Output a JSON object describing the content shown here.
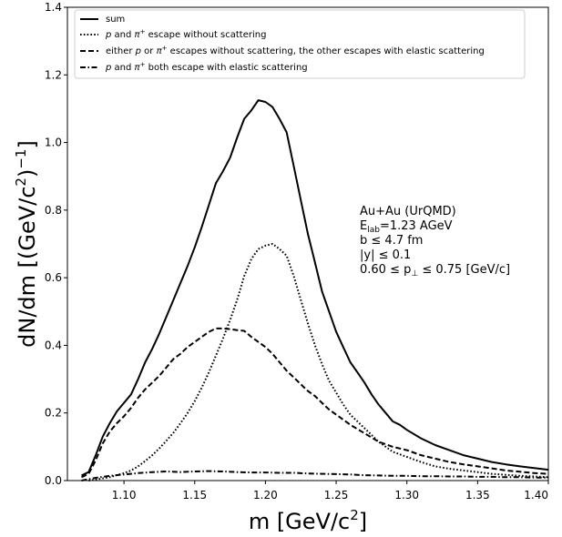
{
  "chart_data": {
    "type": "line",
    "xlabel": "m [GeV/c²]",
    "ylabel": "dN/dm [(GeV/c²)⁻¹]",
    "xlim": [
      1.06,
      1.4
    ],
    "ylim": [
      0.0,
      1.4
    ],
    "xticks": [
      "1.10",
      "1.15",
      "1.20",
      "1.25",
      "1.30",
      "1.35",
      "1.40"
    ],
    "xtick_values": [
      1.1,
      1.15,
      1.2,
      1.25,
      1.3,
      1.35,
      1.4
    ],
    "yticks": [
      "0.0",
      "0.2",
      "0.4",
      "0.6",
      "0.8",
      "1.0",
      "1.2",
      "1.4"
    ],
    "ytick_values": [
      0.0,
      0.2,
      0.4,
      0.6,
      0.8,
      1.0,
      1.2,
      1.4
    ],
    "grid": false,
    "legend_position": "top-left",
    "series": [
      {
        "name": "sum",
        "style": "solid",
        "x": [
          1.07,
          1.075,
          1.08,
          1.085,
          1.09,
          1.095,
          1.1,
          1.105,
          1.11,
          1.115,
          1.12,
          1.125,
          1.13,
          1.135,
          1.14,
          1.145,
          1.15,
          1.155,
          1.16,
          1.165,
          1.17,
          1.175,
          1.18,
          1.185,
          1.19,
          1.195,
          1.2,
          1.205,
          1.21,
          1.215,
          1.22,
          1.225,
          1.23,
          1.235,
          1.24,
          1.245,
          1.25,
          1.255,
          1.26,
          1.265,
          1.27,
          1.275,
          1.28,
          1.285,
          1.29,
          1.295,
          1.3,
          1.31,
          1.32,
          1.33,
          1.34,
          1.35,
          1.36,
          1.37,
          1.38,
          1.39,
          1.4
        ],
        "y": [
          0.015,
          0.025,
          0.075,
          0.13,
          0.17,
          0.205,
          0.23,
          0.255,
          0.3,
          0.35,
          0.39,
          0.435,
          0.485,
          0.535,
          0.585,
          0.635,
          0.69,
          0.75,
          0.815,
          0.88,
          0.915,
          0.955,
          1.015,
          1.07,
          1.095,
          1.125,
          1.12,
          1.105,
          1.07,
          1.03,
          0.93,
          0.83,
          0.73,
          0.645,
          0.56,
          0.5,
          0.44,
          0.395,
          0.35,
          0.32,
          0.29,
          0.255,
          0.225,
          0.2,
          0.175,
          0.165,
          0.15,
          0.125,
          0.105,
          0.09,
          0.075,
          0.065,
          0.055,
          0.048,
          0.042,
          0.037,
          0.032
        ]
      },
      {
        "name": "p and π⁺ escape without scattering",
        "style": "dotted",
        "x": [
          1.075,
          1.08,
          1.09,
          1.1,
          1.105,
          1.11,
          1.115,
          1.12,
          1.125,
          1.13,
          1.135,
          1.14,
          1.145,
          1.15,
          1.155,
          1.16,
          1.165,
          1.17,
          1.175,
          1.18,
          1.185,
          1.19,
          1.195,
          1.2,
          1.205,
          1.21,
          1.215,
          1.22,
          1.225,
          1.23,
          1.235,
          1.24,
          1.245,
          1.25,
          1.255,
          1.26,
          1.265,
          1.27,
          1.275,
          1.28,
          1.29,
          1.3,
          1.31,
          1.32,
          1.33,
          1.34,
          1.35,
          1.36,
          1.37,
          1.38,
          1.39,
          1.4
        ],
        "y": [
          0.0,
          0.003,
          0.01,
          0.022,
          0.03,
          0.042,
          0.058,
          0.075,
          0.095,
          0.118,
          0.142,
          0.17,
          0.2,
          0.235,
          0.275,
          0.32,
          0.37,
          0.42,
          0.475,
          0.535,
          0.605,
          0.655,
          0.685,
          0.695,
          0.7,
          0.685,
          0.665,
          0.605,
          0.535,
          0.465,
          0.4,
          0.345,
          0.295,
          0.26,
          0.225,
          0.195,
          0.175,
          0.155,
          0.135,
          0.115,
          0.085,
          0.07,
          0.055,
          0.042,
          0.035,
          0.03,
          0.025,
          0.02,
          0.017,
          0.014,
          0.012,
          0.01
        ]
      },
      {
        "name": "either p or π⁺ escapes without scattering, the other escapes with elastic scattering",
        "style": "dashed",
        "x": [
          1.07,
          1.075,
          1.08,
          1.085,
          1.09,
          1.095,
          1.1,
          1.105,
          1.11,
          1.115,
          1.12,
          1.125,
          1.13,
          1.135,
          1.14,
          1.145,
          1.15,
          1.155,
          1.16,
          1.165,
          1.17,
          1.175,
          1.18,
          1.185,
          1.19,
          1.195,
          1.2,
          1.205,
          1.21,
          1.215,
          1.22,
          1.225,
          1.23,
          1.235,
          1.24,
          1.245,
          1.25,
          1.26,
          1.27,
          1.28,
          1.29,
          1.3,
          1.31,
          1.32,
          1.33,
          1.34,
          1.35,
          1.36,
          1.37,
          1.38,
          1.39,
          1.4
        ],
        "y": [
          0.01,
          0.02,
          0.06,
          0.11,
          0.145,
          0.17,
          0.19,
          0.215,
          0.245,
          0.27,
          0.29,
          0.31,
          0.335,
          0.36,
          0.375,
          0.395,
          0.41,
          0.425,
          0.44,
          0.45,
          0.45,
          0.448,
          0.445,
          0.443,
          0.425,
          0.41,
          0.395,
          0.375,
          0.35,
          0.325,
          0.305,
          0.285,
          0.265,
          0.25,
          0.23,
          0.21,
          0.195,
          0.165,
          0.14,
          0.115,
          0.1,
          0.09,
          0.075,
          0.065,
          0.055,
          0.048,
          0.042,
          0.036,
          0.03,
          0.026,
          0.022,
          0.02
        ]
      },
      {
        "name": "p and π⁺ both escape with elastic scattering",
        "style": "dashdot",
        "x": [
          1.07,
          1.08,
          1.09,
          1.1,
          1.11,
          1.12,
          1.13,
          1.14,
          1.15,
          1.16,
          1.17,
          1.18,
          1.19,
          1.2,
          1.21,
          1.22,
          1.23,
          1.24,
          1.25,
          1.26,
          1.27,
          1.28,
          1.29,
          1.3,
          1.31,
          1.32,
          1.33,
          1.34,
          1.35,
          1.36,
          1.37,
          1.38,
          1.39,
          1.4
        ],
        "y": [
          0.0,
          0.008,
          0.014,
          0.018,
          0.022,
          0.025,
          0.027,
          0.025,
          0.027,
          0.028,
          0.027,
          0.025,
          0.024,
          0.024,
          0.023,
          0.023,
          0.021,
          0.02,
          0.019,
          0.018,
          0.016,
          0.015,
          0.014,
          0.014,
          0.013,
          0.013,
          0.012,
          0.012,
          0.011,
          0.011,
          0.01,
          0.01,
          0.009,
          0.009
        ]
      }
    ],
    "legend": [
      {
        "style": "solid",
        "label_parts": [
          "sum"
        ]
      },
      {
        "style": "dotted",
        "label_parts": [
          "p",
          " and ",
          "π",
          "+",
          " escape without scattering"
        ]
      },
      {
        "style": "dashed",
        "label_parts": [
          "either ",
          "p",
          " or ",
          "π",
          "+",
          " escapes without scattering, the other escapes with elastic scattering"
        ]
      },
      {
        "style": "dashdot",
        "label_parts": [
          "p",
          " and ",
          "π",
          "+",
          " both escape with elastic scattering"
        ]
      }
    ],
    "annotation_lines": [
      "Au+Au (UrQMD)",
      "E",
      "lab",
      "=1.23 AGeV",
      "b ≤ 4.7 fm",
      "|y| ≤ 0.1",
      "0.60 ≤ p",
      "⊥",
      " ≤ 0.75 [GeV/c]"
    ],
    "label_parts": {
      "x_main": "m [GeV/c",
      "x_sup": "2",
      "x_end": "]",
      "y_main": "dN/dm [(GeV/c",
      "y_sup1": "2",
      "y_mid": ")",
      "y_sup2": "−1",
      "y_end": "]"
    }
  }
}
